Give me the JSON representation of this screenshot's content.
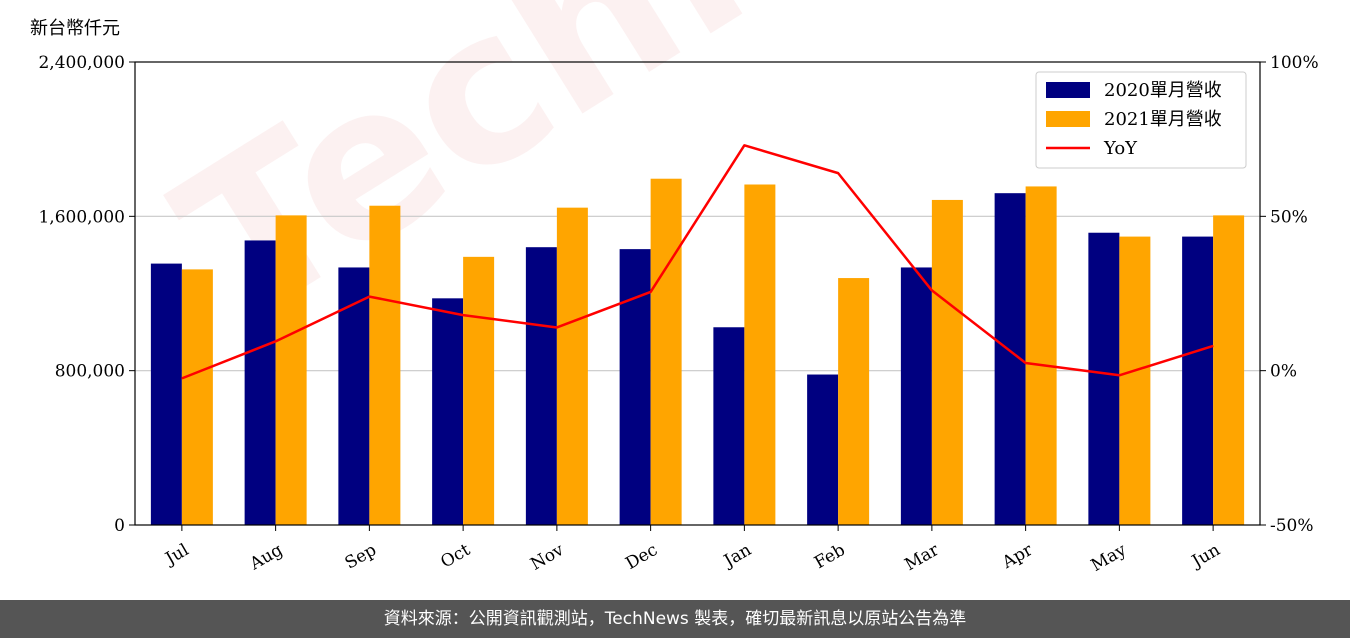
{
  "unit_label": "新台幣仟元",
  "watermark": "TechNews",
  "footer": "資料來源：公開資訊觀測站，TechNews 製表，確切最新訊息以原站公告為準",
  "colors": {
    "bar2020": "#000080",
    "bar2021": "#ffa500",
    "yoy": "#ff0000",
    "grid": "#c8c8c8",
    "footer_bg": "#555555"
  },
  "chart_data": {
    "type": "bar",
    "categories": [
      "Jul",
      "Aug",
      "Sep",
      "Oct",
      "Nov",
      "Dec",
      "Jan",
      "Feb",
      "Mar",
      "Apr",
      "May",
      "Jun"
    ],
    "series": [
      {
        "name": "2020單月營收",
        "type": "bar",
        "axis": "left",
        "values": [
          1355000,
          1475000,
          1335000,
          1175000,
          1440000,
          1430000,
          1025000,
          780000,
          1335000,
          1720000,
          1515000,
          1495000
        ]
      },
      {
        "name": "2021單月營收",
        "type": "bar",
        "axis": "left",
        "values": [
          1325000,
          1605000,
          1655000,
          1390000,
          1645000,
          1795000,
          1765000,
          1280000,
          1685000,
          1755000,
          1495000,
          1605000
        ]
      },
      {
        "name": "YoY",
        "type": "line",
        "axis": "right",
        "values": [
          -2.5,
          9.5,
          24,
          18,
          14,
          25.5,
          73,
          64,
          26,
          2.5,
          -1.5,
          8
        ]
      }
    ],
    "yleft": {
      "lim": [
        0,
        2400000
      ],
      "ticks": [
        "0",
        "800,000",
        "1,600,000",
        "2,400,000"
      ],
      "tick_values": [
        0,
        800000,
        1600000,
        2400000
      ]
    },
    "yright": {
      "lim": [
        -50,
        100
      ],
      "ticks": [
        "-50%",
        "0%",
        "50%",
        "100%"
      ],
      "tick_values": [
        -50,
        0,
        50,
        100
      ]
    },
    "grid": "horizontal",
    "legend": "top-right"
  }
}
